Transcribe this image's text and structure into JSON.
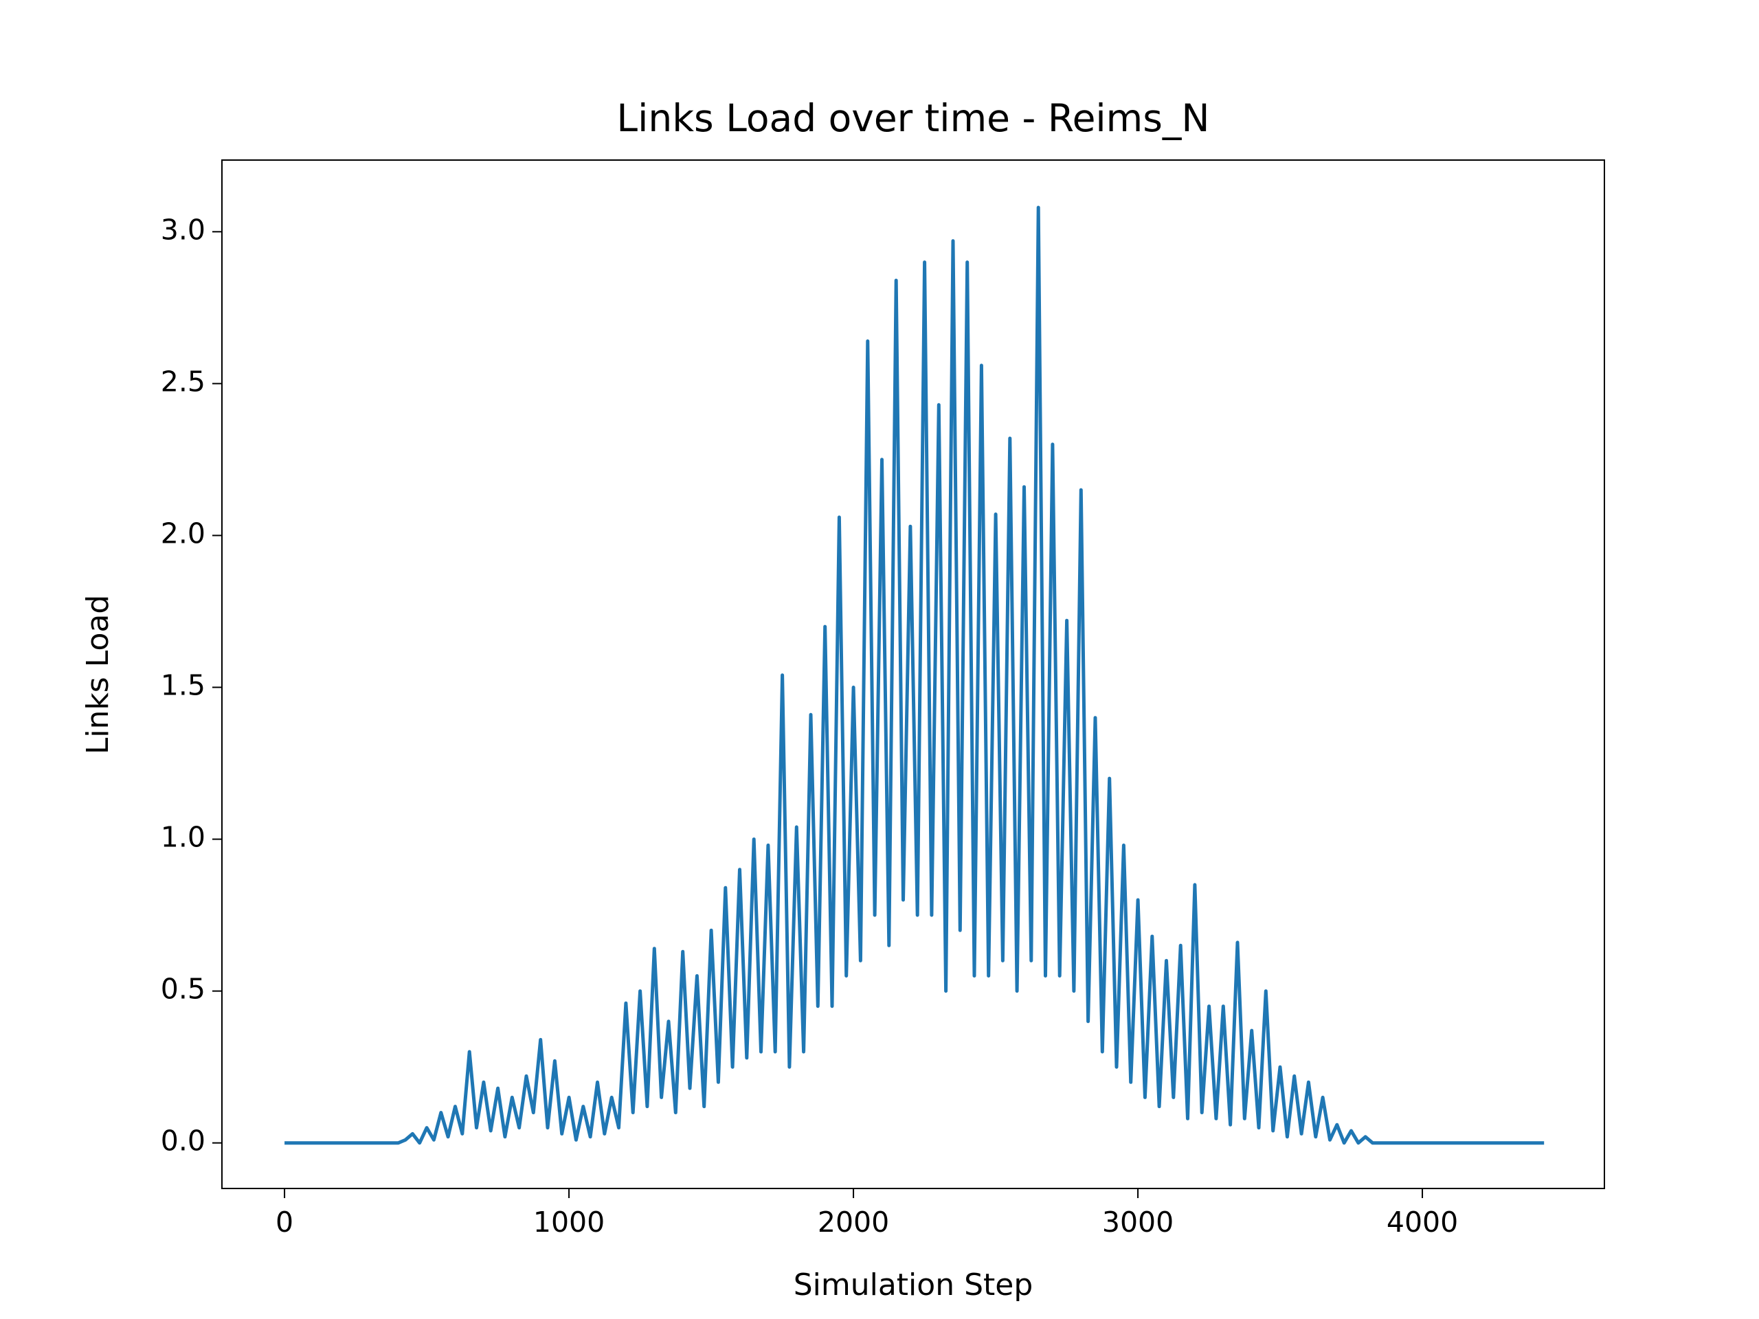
{
  "chart_data": {
    "type": "line",
    "title": "Links Load over time - Reims_N",
    "x_label": "Simulation Step",
    "y_label": "Links Load",
    "x": [
      0,
      400,
      425,
      450,
      475,
      500,
      525,
      550,
      575,
      600,
      625,
      650,
      675,
      700,
      725,
      750,
      775,
      800,
      825,
      850,
      875,
      900,
      925,
      950,
      975,
      1000,
      1025,
      1050,
      1075,
      1100,
      1125,
      1150,
      1175,
      1200,
      1225,
      1250,
      1275,
      1300,
      1325,
      1350,
      1375,
      1400,
      1425,
      1450,
      1475,
      1500,
      1525,
      1550,
      1575,
      1600,
      1625,
      1650,
      1675,
      1700,
      1725,
      1750,
      1775,
      1800,
      1825,
      1850,
      1875,
      1900,
      1925,
      1950,
      1975,
      2000,
      2025,
      2050,
      2075,
      2100,
      2125,
      2150,
      2175,
      2200,
      2225,
      2250,
      2275,
      2300,
      2325,
      2350,
      2375,
      2400,
      2425,
      2450,
      2475,
      2500,
      2525,
      2550,
      2575,
      2600,
      2625,
      2650,
      2675,
      2700,
      2725,
      2750,
      2775,
      2800,
      2825,
      2850,
      2875,
      2900,
      2925,
      2950,
      2975,
      3000,
      3025,
      3050,
      3075,
      3100,
      3125,
      3150,
      3175,
      3200,
      3225,
      3250,
      3275,
      3300,
      3325,
      3350,
      3375,
      3400,
      3425,
      3450,
      3475,
      3500,
      3525,
      3550,
      3575,
      3600,
      3625,
      3650,
      3675,
      3700,
      3725,
      3750,
      3775,
      3800,
      3825,
      3850,
      4428
    ],
    "series": [
      {
        "name": "Links Load",
        "color": "#1f77b4",
        "values": [
          0,
          0,
          0.01,
          0.03,
          0,
          0.05,
          0.01,
          0.1,
          0.02,
          0.12,
          0.03,
          0.3,
          0.05,
          0.2,
          0.04,
          0.18,
          0.02,
          0.15,
          0.05,
          0.22,
          0.1,
          0.34,
          0.05,
          0.27,
          0.03,
          0.15,
          0.01,
          0.12,
          0.02,
          0.2,
          0.03,
          0.15,
          0.05,
          0.46,
          0.1,
          0.5,
          0.12,
          0.64,
          0.15,
          0.4,
          0.1,
          0.63,
          0.18,
          0.55,
          0.12,
          0.7,
          0.2,
          0.84,
          0.25,
          0.9,
          0.28,
          1.0,
          0.3,
          0.98,
          0.3,
          1.54,
          0.25,
          1.04,
          0.3,
          1.41,
          0.45,
          1.7,
          0.45,
          2.06,
          0.55,
          1.5,
          0.6,
          2.64,
          0.75,
          2.25,
          0.65,
          2.84,
          0.8,
          2.03,
          0.75,
          2.9,
          0.75,
          2.43,
          0.5,
          2.97,
          0.7,
          2.9,
          0.55,
          2.56,
          0.55,
          2.07,
          0.6,
          2.32,
          0.5,
          2.16,
          0.6,
          3.08,
          0.55,
          2.3,
          0.55,
          1.72,
          0.5,
          2.15,
          0.4,
          1.4,
          0.3,
          1.2,
          0.25,
          0.98,
          0.2,
          0.8,
          0.15,
          0.68,
          0.12,
          0.6,
          0.15,
          0.65,
          0.08,
          0.85,
          0.1,
          0.45,
          0.08,
          0.45,
          0.06,
          0.66,
          0.08,
          0.37,
          0.05,
          0.5,
          0.04,
          0.25,
          0.02,
          0.22,
          0.03,
          0.2,
          0.02,
          0.15,
          0.01,
          0.06,
          0,
          0.04,
          0,
          0.02,
          0,
          0,
          0
        ]
      }
    ],
    "xlim": [
      -220,
      4640
    ],
    "ylim": [
      -0.15,
      3.236
    ],
    "xticks": [
      0,
      1000,
      2000,
      3000,
      4000
    ],
    "yticks": [
      {
        "value": 0,
        "label": "0.0"
      },
      0.5,
      {
        "value": 1,
        "label": "1.0"
      },
      1.5,
      {
        "value": 2,
        "label": "2.0"
      },
      2.5,
      {
        "value": 3,
        "label": "3.0"
      }
    ],
    "grid": false
  }
}
